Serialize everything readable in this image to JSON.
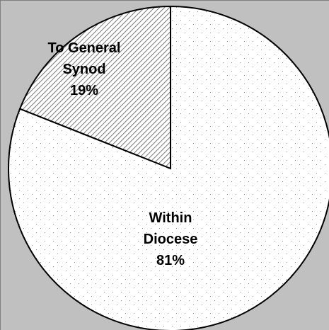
{
  "chart_data": {
    "type": "pie",
    "categories": [
      "To General Synod",
      "Within Diocese"
    ],
    "values": [
      19,
      81
    ],
    "value_labels": [
      "19%",
      "81%"
    ]
  }
}
